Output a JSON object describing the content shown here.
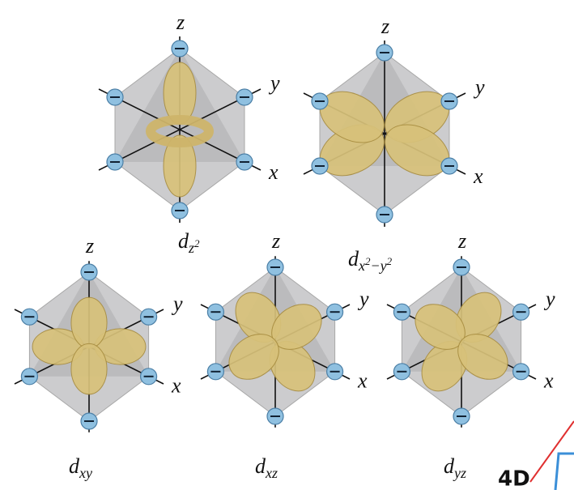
{
  "orbitals": [
    {
      "symbol": "d",
      "subscript": [
        {
          "text": "z"
        },
        {
          "text": "2",
          "sup": true
        }
      ],
      "axes": {
        "z": "z",
        "y": "y",
        "x": "x"
      }
    },
    {
      "symbol": "d",
      "subscript": [
        {
          "text": "x"
        },
        {
          "text": "2",
          "sup": true
        },
        {
          "text": "−y"
        },
        {
          "text": "2",
          "sup": true
        }
      ],
      "axes": {
        "z": "z",
        "y": "y",
        "x": "x"
      }
    },
    {
      "symbol": "d",
      "subscript": [
        {
          "text": "xy"
        }
      ],
      "axes": {
        "z": "z",
        "y": "y",
        "x": "x"
      }
    },
    {
      "symbol": "d",
      "subscript": [
        {
          "text": "xz"
        }
      ],
      "axes": {
        "z": "z",
        "y": "y",
        "x": "x"
      }
    },
    {
      "symbol": "d",
      "subscript": [
        {
          "text": "yz"
        }
      ],
      "axes": {
        "z": "z",
        "y": "y",
        "x": "x"
      }
    }
  ],
  "annotation": "4D"
}
